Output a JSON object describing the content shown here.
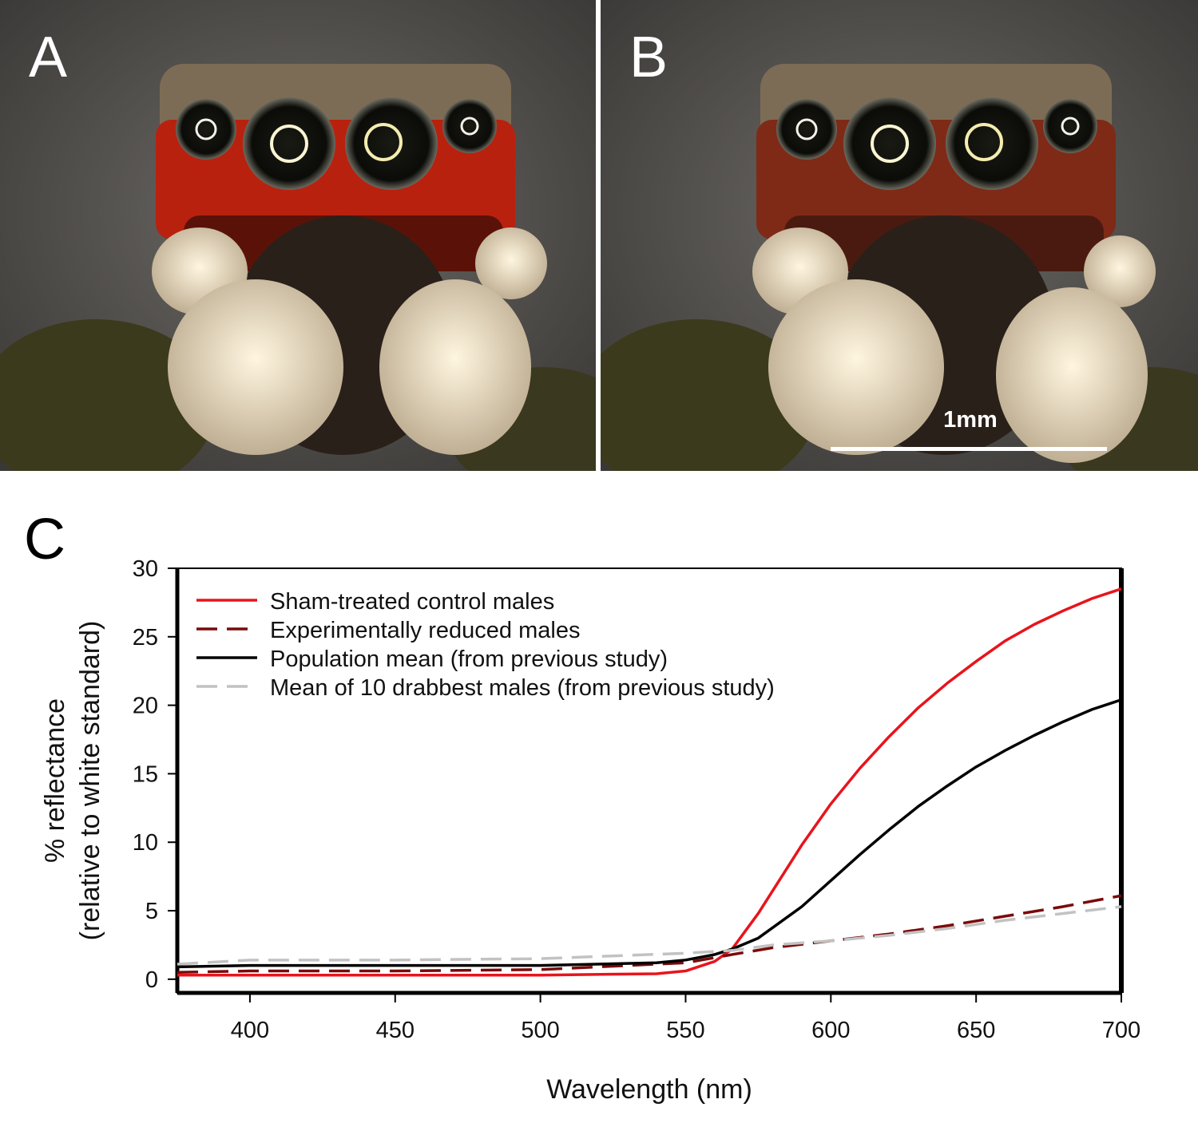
{
  "panels": {
    "a_label": "A",
    "b_label": "B",
    "c_label": "C",
    "scale_bar_label": "1mm"
  },
  "chart_data": {
    "type": "line",
    "title": "",
    "xlabel": "Wavelength (nm)",
    "ylabel_line1": "% reflectance",
    "ylabel_line2": "(relative to white standard)",
    "xlim": [
      375,
      700
    ],
    "ylim": [
      -1,
      30
    ],
    "x_ticks": [
      400,
      450,
      500,
      550,
      600,
      650,
      700
    ],
    "y_ticks": [
      0,
      5,
      10,
      15,
      20,
      25,
      30
    ],
    "grid": false,
    "legend_position": "top-left",
    "series": [
      {
        "name": "Sham-treated control males",
        "color": "#e8141c",
        "dash": "solid",
        "x": [
          375,
          400,
          450,
          500,
          540,
          550,
          560,
          566,
          575,
          590,
          600,
          610,
          620,
          630,
          640,
          650,
          660,
          670,
          680,
          690,
          700
        ],
        "y": [
          0.3,
          0.3,
          0.3,
          0.3,
          0.4,
          0.6,
          1.3,
          2.2,
          4.8,
          9.8,
          12.8,
          15.4,
          17.7,
          19.8,
          21.6,
          23.2,
          24.7,
          25.9,
          26.9,
          27.8,
          28.5
        ]
      },
      {
        "name": "Experimentally reduced males",
        "color": "#7a0a0a",
        "dash": "dashed",
        "x": [
          375,
          400,
          450,
          500,
          550,
          566,
          580,
          600,
          620,
          640,
          660,
          680,
          700
        ],
        "y": [
          0.5,
          0.6,
          0.6,
          0.7,
          1.2,
          1.8,
          2.3,
          2.8,
          3.3,
          3.9,
          4.6,
          5.3,
          6.1
        ]
      },
      {
        "name": "Population mean (from previous study)",
        "color": "#000000",
        "dash": "solid",
        "x": [
          375,
          400,
          450,
          500,
          540,
          550,
          560,
          566,
          575,
          590,
          600,
          610,
          620,
          630,
          640,
          650,
          660,
          670,
          680,
          690,
          700
        ],
        "y": [
          0.9,
          1.0,
          1.0,
          1.0,
          1.2,
          1.4,
          1.8,
          2.2,
          3.0,
          5.3,
          7.2,
          9.1,
          10.9,
          12.6,
          14.1,
          15.5,
          16.7,
          17.8,
          18.8,
          19.7,
          20.4
        ]
      },
      {
        "name": "Mean of 10 drabbest males (from previous study)",
        "color": "#c2c2c2",
        "dash": "dashed",
        "x": [
          375,
          400,
          450,
          500,
          550,
          566,
          580,
          600,
          620,
          640,
          660,
          680,
          700
        ],
        "y": [
          1.1,
          1.4,
          1.4,
          1.5,
          1.9,
          2.1,
          2.5,
          2.8,
          3.2,
          3.7,
          4.3,
          4.8,
          5.3
        ]
      }
    ]
  }
}
